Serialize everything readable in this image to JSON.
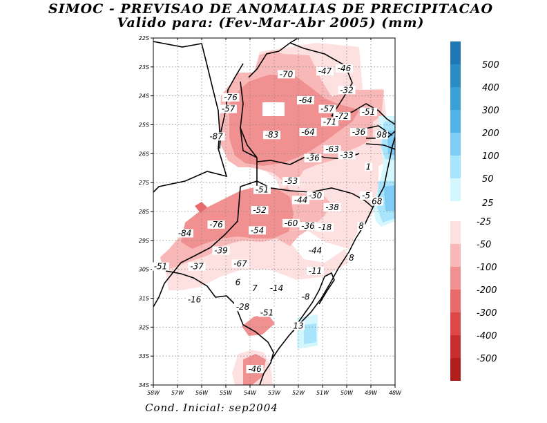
{
  "title_line1": "SIMOC - PREVISAO DE ANOMALIAS DE PRECIPITACAO",
  "title_line2": "Valido para: (Fev-Mar-Abr 2005) (mm)",
  "footer": "Cond. Inicial: sep2004",
  "lat_ticks": [
    "22S",
    "23S",
    "24S",
    "25S",
    "26S",
    "27S",
    "28S",
    "29S",
    "30S",
    "31S",
    "32S",
    "33S",
    "34S"
  ],
  "lon_ticks": [
    "58W",
    "57W",
    "56W",
    "55W",
    "54W",
    "53W",
    "52W",
    "51W",
    "50W",
    "49W",
    "48W"
  ],
  "legend_positive": [
    {
      "label": "500",
      "color": "#1f78b4"
    },
    {
      "label": "400",
      "color": "#2b8cc4"
    },
    {
      "label": "300",
      "color": "#3aa0d6"
    },
    {
      "label": "200",
      "color": "#52b4e6"
    },
    {
      "label": "100",
      "color": "#7fcdf4"
    },
    {
      "label": "50",
      "color": "#a8e4fb"
    },
    {
      "label": "25",
      "color": "#d3f7fd"
    }
  ],
  "legend_negative": [
    {
      "label": "-25",
      "color": "#fde0e0"
    },
    {
      "label": "-50",
      "color": "#f9b8b8"
    },
    {
      "label": "-100",
      "color": "#f09090"
    },
    {
      "label": "-200",
      "color": "#e86a6a"
    },
    {
      "label": "-300",
      "color": "#dc4848"
    },
    {
      "label": "-400",
      "color": "#c82e2e"
    },
    {
      "label": "-500",
      "color": "#b01e1e"
    }
  ],
  "value_labels": [
    {
      "text": "-70",
      "lon": -52.5,
      "lat": -23.3
    },
    {
      "text": "-47",
      "lon": -50.9,
      "lat": -23.2
    },
    {
      "text": "-46",
      "lon": -50.1,
      "lat": -23.1
    },
    {
      "text": "-32",
      "lon": -50.0,
      "lat": -23.85
    },
    {
      "text": "-76",
      "lon": -54.8,
      "lat": -24.1
    },
    {
      "text": "-64",
      "lon": -51.7,
      "lat": -24.2
    },
    {
      "text": "-57",
      "lon": -54.9,
      "lat": -24.5
    },
    {
      "text": "-57",
      "lon": -50.8,
      "lat": -24.5
    },
    {
      "text": "-51",
      "lon": -49.1,
      "lat": -24.6
    },
    {
      "text": "-72",
      "lon": -50.2,
      "lat": -24.75
    },
    {
      "text": "-71",
      "lon": -50.7,
      "lat": -24.95
    },
    {
      "text": "-36",
      "lon": -49.5,
      "lat": -25.3
    },
    {
      "text": "98",
      "lon": -48.55,
      "lat": -25.4
    },
    {
      "text": "-87",
      "lon": -55.4,
      "lat": -25.45
    },
    {
      "text": "-83",
      "lon": -53.1,
      "lat": -25.4
    },
    {
      "text": "-64",
      "lon": -51.6,
      "lat": -25.3
    },
    {
      "text": "-63",
      "lon": -50.6,
      "lat": -25.9
    },
    {
      "text": "-36",
      "lon": -51.4,
      "lat": -26.2
    },
    {
      "text": "-33",
      "lon": -50.0,
      "lat": -26.1
    },
    {
      "text": "1",
      "lon": -49.1,
      "lat": -26.5
    },
    {
      "text": "-53",
      "lon": -52.3,
      "lat": -27.0
    },
    {
      "text": "-51",
      "lon": -53.5,
      "lat": -27.3
    },
    {
      "text": "-30",
      "lon": -51.3,
      "lat": -27.5
    },
    {
      "text": "-44",
      "lon": -51.9,
      "lat": -27.65
    },
    {
      "text": "-5",
      "lon": -49.2,
      "lat": -27.5
    },
    {
      "text": "68",
      "lon": -48.75,
      "lat": -27.7
    },
    {
      "text": "-52",
      "lon": -53.6,
      "lat": -28.0
    },
    {
      "text": "-38",
      "lon": -50.6,
      "lat": -27.9
    },
    {
      "text": "-76",
      "lon": -55.4,
      "lat": -28.5
    },
    {
      "text": "-60",
      "lon": -52.3,
      "lat": -28.45
    },
    {
      "text": "-36",
      "lon": -51.6,
      "lat": -28.55
    },
    {
      "text": "-18",
      "lon": -50.9,
      "lat": -28.6
    },
    {
      "text": "8",
      "lon": -49.4,
      "lat": -28.55
    },
    {
      "text": "-84",
      "lon": -56.7,
      "lat": -28.8
    },
    {
      "text": "-54",
      "lon": -53.7,
      "lat": -28.7
    },
    {
      "text": "-39",
      "lon": -55.2,
      "lat": -29.4
    },
    {
      "text": "-44",
      "lon": -51.3,
      "lat": -29.4
    },
    {
      "text": "8",
      "lon": -49.8,
      "lat": -29.65
    },
    {
      "text": "-67",
      "lon": -54.4,
      "lat": -29.85
    },
    {
      "text": "-51",
      "lon": -57.7,
      "lat": -29.95
    },
    {
      "text": "-37",
      "lon": -56.2,
      "lat": -29.95
    },
    {
      "text": "-11",
      "lon": -51.3,
      "lat": -30.1
    },
    {
      "text": "6",
      "lon": -54.5,
      "lat": -30.5
    },
    {
      "text": "7",
      "lon": -53.8,
      "lat": -30.7
    },
    {
      "text": "-14",
      "lon": -52.9,
      "lat": -30.7
    },
    {
      "text": "-8",
      "lon": -51.7,
      "lat": -31.0
    },
    {
      "text": "-16",
      "lon": -56.3,
      "lat": -31.1
    },
    {
      "text": "-28",
      "lon": -54.3,
      "lat": -31.35
    },
    {
      "text": "-51",
      "lon": -53.3,
      "lat": -31.55
    },
    {
      "text": "13",
      "lon": -52.0,
      "lat": -32.0
    },
    {
      "text": "-46",
      "lon": -53.8,
      "lat": -33.5
    }
  ]
}
